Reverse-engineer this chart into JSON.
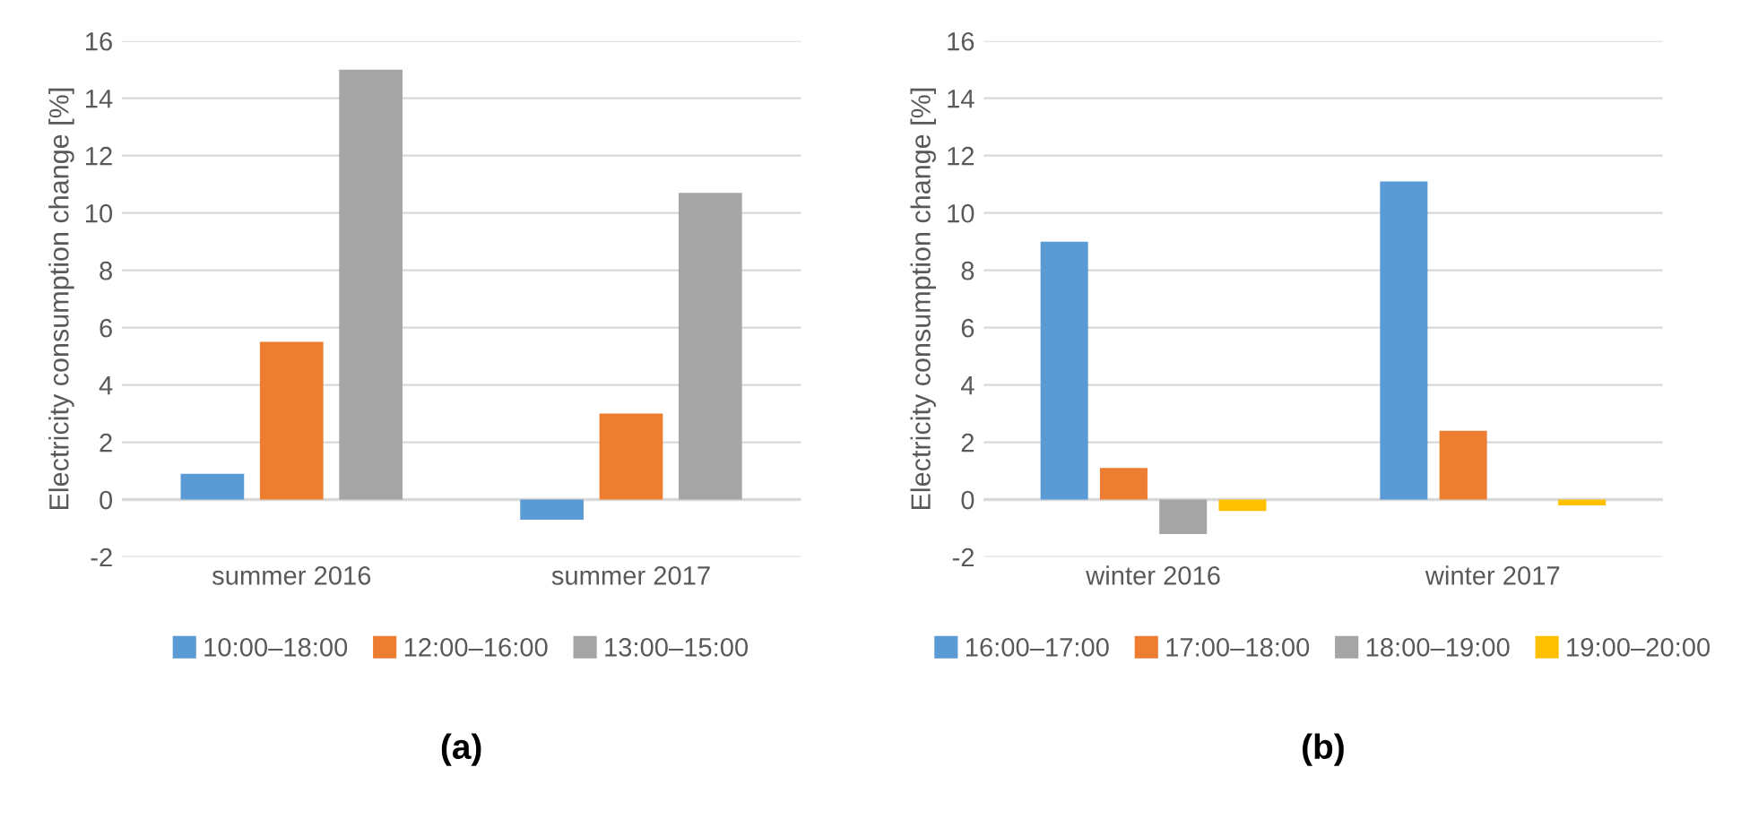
{
  "chart_data": [
    {
      "type": "bar",
      "title": "(a)",
      "ylabel": "Electricity consumption change [%]",
      "categories": [
        "summer 2016",
        "summer 2017"
      ],
      "series": [
        {
          "name": "10:00–18:00",
          "color": "#5b9bd5",
          "values": [
            0.9,
            -0.7
          ]
        },
        {
          "name": "12:00–16:00",
          "color": "#ed7d31",
          "values": [
            5.5,
            3.0
          ]
        },
        {
          "name": "13:00–15:00",
          "color": "#a5a5a5",
          "values": [
            15.0,
            10.7
          ]
        }
      ],
      "ylim": [
        -2,
        16
      ],
      "yticks": [
        {
          "value": -2,
          "label": "-2"
        },
        0,
        2,
        4,
        6,
        8,
        10,
        12,
        14,
        16
      ],
      "grid": "y",
      "legend": "bottom"
    },
    {
      "type": "bar",
      "title": "(b)",
      "ylabel": "Electricity consumption change [%]",
      "categories": [
        "winter 2016",
        "winter 2017"
      ],
      "series": [
        {
          "name": "16:00–17:00",
          "color": "#5b9bd5",
          "values": [
            9.0,
            11.1
          ]
        },
        {
          "name": "17:00–18:00",
          "color": "#ed7d31",
          "values": [
            1.1,
            2.4
          ]
        },
        {
          "name": "18:00–19:00",
          "color": "#a5a5a5",
          "values": [
            -1.2,
            null
          ]
        },
        {
          "name": "19:00–20:00",
          "color": "#ffc000",
          "values": [
            -0.4,
            -0.2
          ]
        }
      ],
      "ylim": [
        -2,
        16
      ],
      "yticks": [
        {
          "value": -2,
          "label": "-2"
        },
        0,
        2,
        4,
        6,
        8,
        10,
        12,
        14,
        16
      ],
      "grid": "y",
      "legend": "bottom"
    }
  ]
}
